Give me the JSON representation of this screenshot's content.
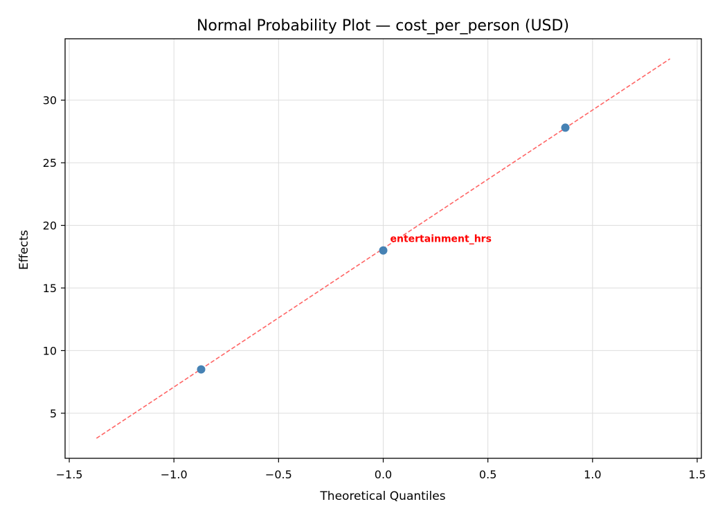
{
  "chart_data": {
    "type": "scatter",
    "title": "Normal Probability Plot — cost_per_person (USD)",
    "xlabel": "Theoretical Quantiles",
    "ylabel": "Effects",
    "xlim": [
      -1.52,
      1.52
    ],
    "ylim": [
      1.4,
      34.9
    ],
    "xticks": [
      -1.5,
      -1.0,
      -0.5,
      0.0,
      0.5,
      1.0,
      1.5
    ],
    "xtick_labels": [
      "−1.5",
      "−1.0",
      "−0.5",
      "0.0",
      "0.5",
      "1.0",
      "1.5"
    ],
    "yticks": [
      5,
      10,
      15,
      20,
      25,
      30
    ],
    "ytick_labels": [
      "5",
      "10",
      "15",
      "20",
      "25",
      "30"
    ],
    "grid": true,
    "points": [
      {
        "x": -0.87,
        "y": 8.5,
        "label": ""
      },
      {
        "x": 0.0,
        "y": 18.0,
        "label": "entertainment_hrs"
      },
      {
        "x": 0.87,
        "y": 27.8,
        "label": ""
      }
    ],
    "reference_line": {
      "x": [
        -1.37,
        1.37
      ],
      "y": [
        3.0,
        33.3
      ],
      "style": "dashed"
    },
    "colors": {
      "points": "#4682b4",
      "reference_line": "#ff6464",
      "annotation": "#ff0000",
      "grid": "#dddddd"
    }
  }
}
